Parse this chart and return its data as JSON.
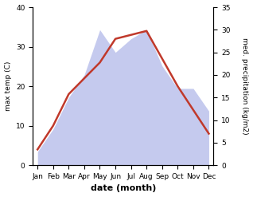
{
  "months": [
    "Jan",
    "Feb",
    "Mar",
    "Apr",
    "May",
    "Jun",
    "Jul",
    "Aug",
    "Sep",
    "Oct",
    "Nov",
    "Dec"
  ],
  "max_temp": [
    4,
    10,
    18,
    22,
    26,
    32,
    33,
    34,
    27,
    20,
    14,
    8
  ],
  "precipitation": [
    3,
    8,
    15,
    20,
    30,
    25,
    28,
    30,
    22,
    17,
    17,
    12
  ],
  "temp_color": "#c0392b",
  "precip_fill_color": "#c5caee",
  "temp_ylim": [
    0,
    40
  ],
  "precip_ylim": [
    0,
    35
  ],
  "temp_yticks": [
    0,
    10,
    20,
    30,
    40
  ],
  "precip_yticks": [
    0,
    5,
    10,
    15,
    20,
    25,
    30,
    35
  ],
  "xlabel": "date (month)",
  "ylabel_left": "max temp (C)",
  "ylabel_right": "med. precipitation (kg/m2)",
  "background_color": "#ffffff",
  "temp_linewidth": 1.8,
  "label_fontsize": 8,
  "tick_fontsize": 6.5
}
